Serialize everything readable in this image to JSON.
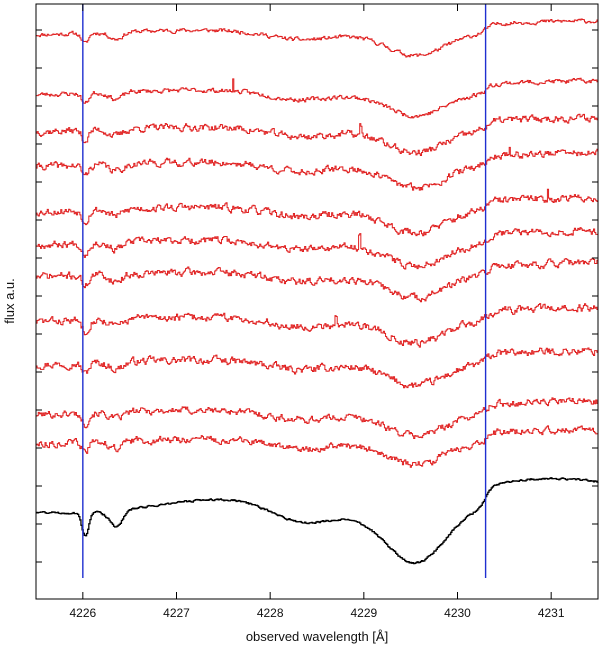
{
  "chart_data": {
    "type": "line",
    "xlabel": "observed wavelength [Å]",
    "ylabel": "flux a.u.",
    "xlim": [
      4225.5,
      4231.5
    ],
    "x_ticks": [
      4226,
      4227,
      4228,
      4229,
      4230,
      4231
    ],
    "x_tick_labels": [
      "4226",
      "4227",
      "4228",
      "4229",
      "4230",
      "4231"
    ],
    "y_ticks_unlabeled": true,
    "vertical_markers": [
      4226.0,
      4230.3
    ],
    "series_style": {
      "observed": "step-line-red",
      "template": "step-line-black"
    },
    "series": [
      {
        "role": "observed",
        "offset": 0,
        "noise": 0.004,
        "seed": 11,
        "spike_x": null,
        "spike_h": 0
      },
      {
        "role": "observed",
        "offset": 1,
        "noise": 0.0045,
        "seed": 23,
        "spike_x": 4227.6,
        "spike_h": 0.035
      },
      {
        "role": "observed",
        "offset": 2,
        "noise": 0.007,
        "seed": 37,
        "spike_x": 4228.96,
        "spike_h": 0.02
      },
      {
        "role": "observed",
        "offset": 3,
        "noise": 0.007,
        "seed": 41,
        "spike_x": 4230.55,
        "spike_h": 0.022
      },
      {
        "role": "observed",
        "offset": 4,
        "noise": 0.0075,
        "seed": 53,
        "spike_x": 4230.96,
        "spike_h": 0.024
      },
      {
        "role": "observed",
        "offset": 5,
        "noise": 0.007,
        "seed": 67,
        "spike_x": 4228.95,
        "spike_h": 0.028
      },
      {
        "role": "observed",
        "offset": 6,
        "noise": 0.0075,
        "seed": 71,
        "spike_x": null,
        "spike_h": 0
      },
      {
        "role": "observed",
        "offset": 7,
        "noise": 0.0075,
        "seed": 83,
        "spike_x": 4228.7,
        "spike_h": 0.025
      },
      {
        "role": "observed",
        "offset": 8,
        "noise": 0.0075,
        "seed": 97,
        "spike_x": null,
        "spike_h": 0
      },
      {
        "role": "observed",
        "offset": 9,
        "noise": 0.007,
        "seed": 101,
        "spike_x": null,
        "spike_h": 0
      },
      {
        "role": "observed",
        "offset": 10,
        "noise": 0.007,
        "seed": 113,
        "spike_x": null,
        "spike_h": 0
      },
      {
        "role": "template",
        "offset": 11,
        "noise": 0.002,
        "seed": 131,
        "spike_x": null,
        "spike_h": 0
      }
    ],
    "line_baselines_px": null
  }
}
